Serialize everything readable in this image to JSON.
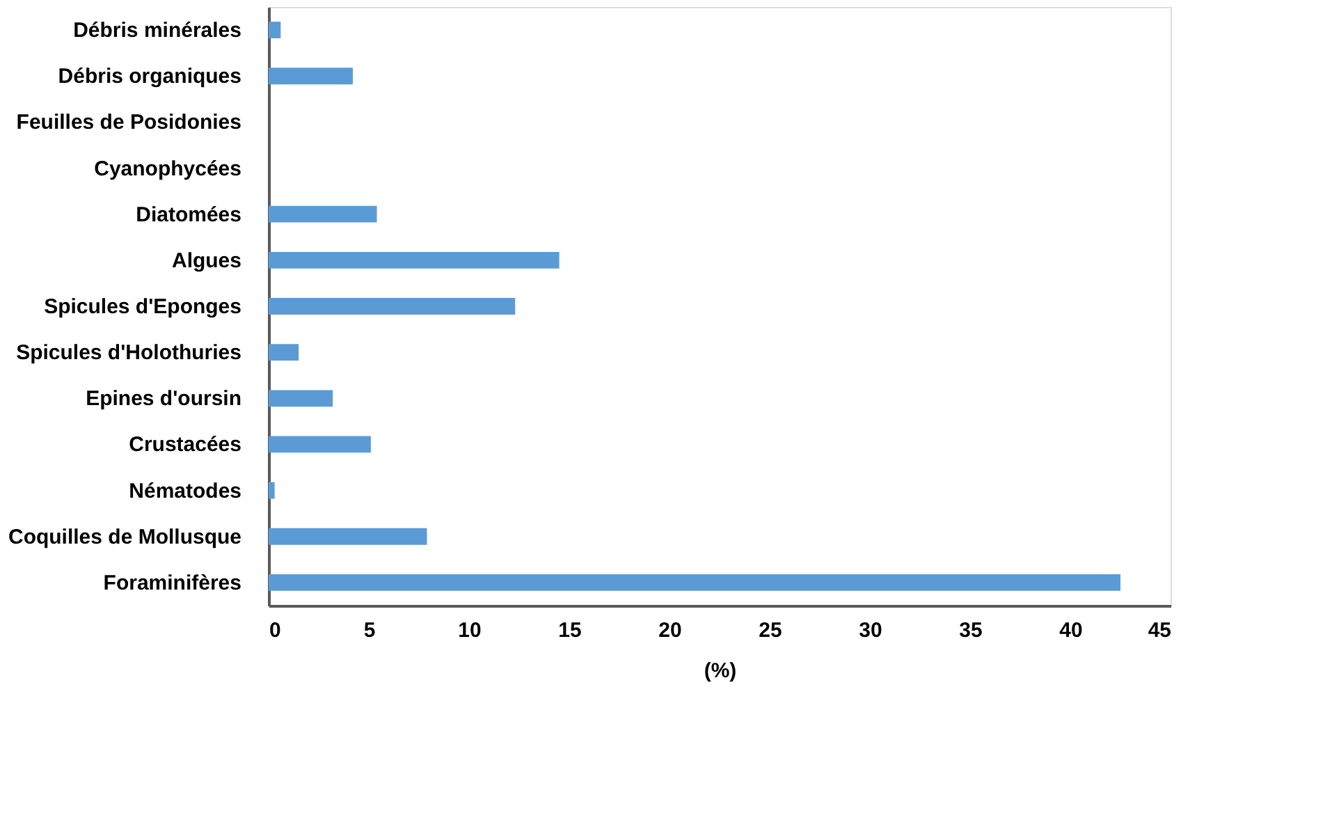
{
  "chart_data": {
    "type": "bar",
    "orientation": "horizontal",
    "xlabel": "(%)",
    "categories": [
      "Débris minérales",
      "Débris organiques",
      "Feuilles de Posidonies",
      "Cyanophycées",
      "Diatomées",
      "Algues",
      "Spicules d'Eponges",
      "Spicules d'Holothuries",
      "Epines d'oursin",
      "Crustacées",
      "Nématodes",
      "Coquilles de Mollusque",
      "Foraminifères"
    ],
    "values": [
      0.6,
      4.2,
      0,
      0,
      5.4,
      14.5,
      12.3,
      1.5,
      3.2,
      5.1,
      0.3,
      7.9,
      42.5
    ],
    "color": "#5b9bd5",
    "xlim": [
      0,
      45
    ],
    "xticks": [
      0,
      5,
      10,
      15,
      20,
      25,
      30,
      35,
      40,
      45
    ],
    "grid": false
  }
}
